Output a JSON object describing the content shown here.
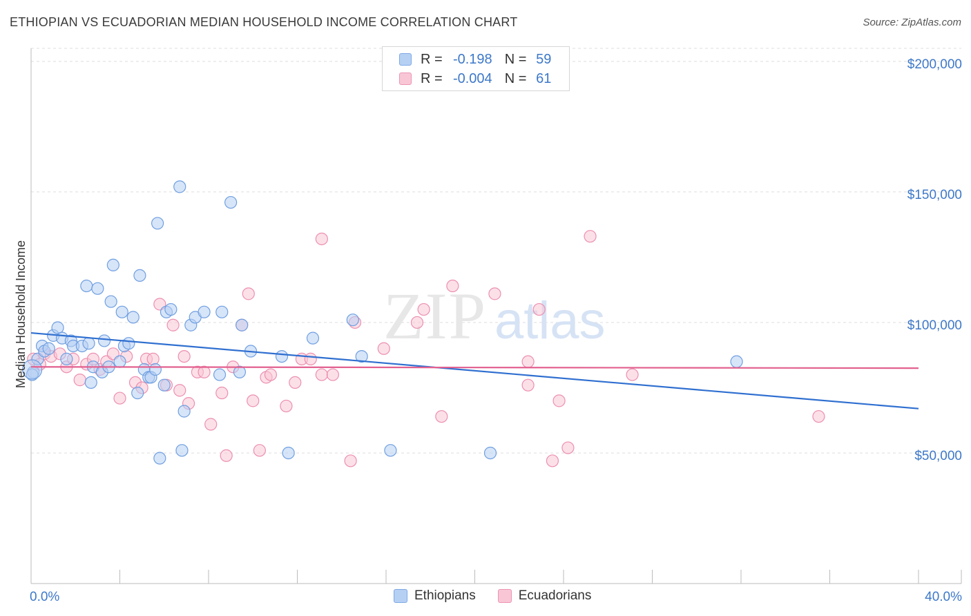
{
  "header": {
    "title": "ETHIOPIAN VS ECUADORIAN MEDIAN HOUSEHOLD INCOME CORRELATION CHART",
    "source": "Source: ZipAtlas.com"
  },
  "legend_top": {
    "rows": [
      {
        "r_label": "R =",
        "r_value": "-0.198",
        "n_label": "N =",
        "n_value": "59"
      },
      {
        "r_label": "R =",
        "r_value": "-0.004",
        "n_label": "N =",
        "n_value": "61"
      }
    ]
  },
  "legend_bottom": {
    "items": [
      {
        "label": "Ethiopians"
      },
      {
        "label": "Ecuadorians"
      }
    ]
  },
  "watermark": {
    "zip": "ZIP",
    "atlas": "atlas"
  },
  "colors": {
    "ethiopians_fill": "#b6d0f4",
    "ethiopians_stroke": "#6f9fe0",
    "ethiopians_line": "#2f6fd0",
    "ecuadorians_fill": "#f9c6d6",
    "ecuadorians_stroke": "#ec8fb0",
    "ecuadorians_line": "#e2608f",
    "tick_text": "#3d78c9",
    "grid": "#dddddd"
  },
  "chart_data": {
    "type": "scatter",
    "title": "ETHIOPIAN VS ECUADORIAN MEDIAN HOUSEHOLD INCOME CORRELATION CHART",
    "xlabel": "",
    "ylabel": "Median Household Income",
    "xlim": [
      0,
      40
    ],
    "ylim": [
      0,
      205000
    ],
    "x_tick_labels": [
      "0.0%",
      "40.0%"
    ],
    "y_ticks": [
      50000,
      100000,
      150000,
      200000
    ],
    "y_tick_labels": [
      "$50,000",
      "$100,000",
      "$150,000",
      "$200,000"
    ],
    "grid": "horizontal dashed",
    "legend_position": "top-center and bottom",
    "series": [
      {
        "name": "Ethiopians",
        "r": -0.198,
        "n": 59,
        "trend": {
          "x": [
            0,
            40
          ],
          "y": [
            96000,
            67000
          ]
        },
        "points": [
          [
            0.1,
            81000
          ],
          [
            0.3,
            86000
          ],
          [
            0.5,
            91000
          ],
          [
            0.6,
            89000
          ],
          [
            0.8,
            90000
          ],
          [
            1.0,
            95000
          ],
          [
            1.2,
            98000
          ],
          [
            1.4,
            94000
          ],
          [
            1.6,
            86000
          ],
          [
            1.8,
            93000
          ],
          [
            1.9,
            91000
          ],
          [
            2.3,
            91000
          ],
          [
            2.5,
            114000
          ],
          [
            2.6,
            92000
          ],
          [
            2.7,
            77000
          ],
          [
            2.8,
            83000
          ],
          [
            3.0,
            113000
          ],
          [
            3.2,
            81000
          ],
          [
            3.3,
            93000
          ],
          [
            3.5,
            83000
          ],
          [
            3.6,
            108000
          ],
          [
            3.7,
            122000
          ],
          [
            4.0,
            85000
          ],
          [
            4.1,
            104000
          ],
          [
            4.2,
            91000
          ],
          [
            4.4,
            92000
          ],
          [
            4.6,
            102000
          ],
          [
            4.8,
            73000
          ],
          [
            4.9,
            118000
          ],
          [
            5.1,
            82000
          ],
          [
            5.3,
            79000
          ],
          [
            5.4,
            79000
          ],
          [
            5.6,
            82000
          ],
          [
            5.7,
            138000
          ],
          [
            5.8,
            48000
          ],
          [
            6.0,
            76000
          ],
          [
            6.1,
            104000
          ],
          [
            6.3,
            105000
          ],
          [
            6.7,
            152000
          ],
          [
            6.8,
            51000
          ],
          [
            6.9,
            66000
          ],
          [
            7.2,
            99000
          ],
          [
            7.4,
            102000
          ],
          [
            7.8,
            104000
          ],
          [
            8.5,
            80000
          ],
          [
            8.6,
            104000
          ],
          [
            9.0,
            146000
          ],
          [
            9.4,
            81000
          ],
          [
            9.5,
            99000
          ],
          [
            9.9,
            89000
          ],
          [
            11.3,
            87000
          ],
          [
            11.6,
            50000
          ],
          [
            12.7,
            94000
          ],
          [
            14.5,
            101000
          ],
          [
            14.9,
            87000
          ],
          [
            16.2,
            51000
          ],
          [
            20.7,
            50000
          ],
          [
            31.8,
            85000
          ],
          [
            0.05,
            80000
          ]
        ]
      },
      {
        "name": "Ecuadorians",
        "r": -0.004,
        "n": 61,
        "trend": {
          "x": [
            0,
            40
          ],
          "y": [
            83000,
            82500
          ]
        },
        "points": [
          [
            0.1,
            86000
          ],
          [
            0.4,
            84000
          ],
          [
            0.6,
            88000
          ],
          [
            0.9,
            87000
          ],
          [
            1.3,
            88000
          ],
          [
            1.6,
            83000
          ],
          [
            1.9,
            86000
          ],
          [
            2.2,
            78000
          ],
          [
            2.5,
            84000
          ],
          [
            2.8,
            86000
          ],
          [
            3.1,
            82000
          ],
          [
            3.4,
            85000
          ],
          [
            3.7,
            88000
          ],
          [
            4.0,
            71000
          ],
          [
            4.3,
            87000
          ],
          [
            4.7,
            77000
          ],
          [
            5.0,
            75000
          ],
          [
            5.2,
            86000
          ],
          [
            5.5,
            86000
          ],
          [
            5.8,
            107000
          ],
          [
            6.1,
            76000
          ],
          [
            6.4,
            99000
          ],
          [
            6.7,
            74000
          ],
          [
            6.9,
            87000
          ],
          [
            7.1,
            69000
          ],
          [
            7.5,
            81000
          ],
          [
            7.8,
            81000
          ],
          [
            8.1,
            61000
          ],
          [
            8.6,
            73000
          ],
          [
            8.8,
            49000
          ],
          [
            9.1,
            83000
          ],
          [
            9.5,
            99000
          ],
          [
            9.8,
            111000
          ],
          [
            10.0,
            70000
          ],
          [
            10.3,
            51000
          ],
          [
            10.6,
            79000
          ],
          [
            10.8,
            80000
          ],
          [
            11.5,
            68000
          ],
          [
            11.9,
            77000
          ],
          [
            12.2,
            86000
          ],
          [
            12.6,
            86000
          ],
          [
            13.1,
            80000
          ],
          [
            13.1,
            132000
          ],
          [
            13.6,
            80000
          ],
          [
            14.4,
            47000
          ],
          [
            14.6,
            100000
          ],
          [
            15.9,
            90000
          ],
          [
            17.4,
            100000
          ],
          [
            17.7,
            105000
          ],
          [
            18.5,
            64000
          ],
          [
            19.0,
            114000
          ],
          [
            20.9,
            111000
          ],
          [
            22.4,
            85000
          ],
          [
            22.4,
            76000
          ],
          [
            22.9,
            105000
          ],
          [
            23.8,
            70000
          ],
          [
            23.5,
            47000
          ],
          [
            24.2,
            52000
          ],
          [
            25.2,
            133000
          ],
          [
            27.1,
            80000
          ],
          [
            35.5,
            64000
          ]
        ]
      }
    ]
  }
}
